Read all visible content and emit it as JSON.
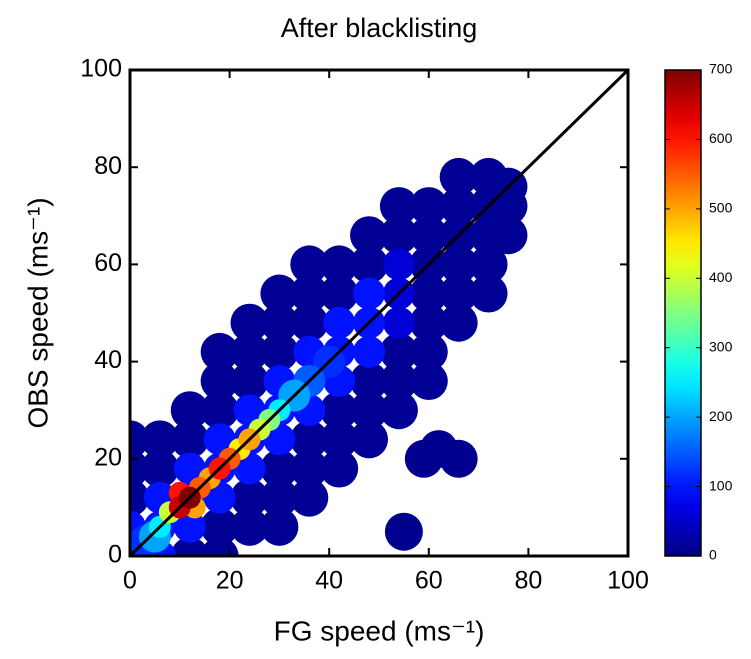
{
  "chart_data": {
    "type": "density_scatter",
    "title": "After blacklisting",
    "xlabel": "FG speed (ms⁻¹)",
    "ylabel": "OBS speed (ms⁻¹)",
    "xlim": [
      0,
      100
    ],
    "ylim": [
      0,
      100
    ],
    "xticks": [
      0,
      20,
      40,
      60,
      80,
      100
    ],
    "yticks": [
      0,
      20,
      40,
      60,
      80,
      100
    ],
    "colormap": "jet",
    "colorbar": {
      "lim": [
        0,
        700
      ],
      "ticks": [
        0,
        100,
        200,
        300,
        400,
        500,
        600,
        700
      ]
    },
    "reference_line": {
      "x": [
        0,
        100
      ],
      "y": [
        0,
        100
      ],
      "color": "#000000"
    },
    "x": [
      0,
      0,
      0,
      0,
      0,
      6,
      6,
      6,
      6,
      6,
      12,
      12,
      12,
      12,
      12,
      12,
      18,
      18,
      18,
      18,
      18,
      18,
      18,
      18,
      24,
      24,
      24,
      24,
      24,
      24,
      24,
      24,
      30,
      30,
      30,
      30,
      30,
      30,
      30,
      30,
      30,
      36,
      36,
      36,
      36,
      36,
      36,
      36,
      36,
      36,
      42,
      42,
      42,
      42,
      42,
      42,
      42,
      42,
      48,
      48,
      48,
      48,
      48,
      48,
      48,
      48,
      54,
      54,
      54,
      54,
      54,
      54,
      54,
      54,
      60,
      60,
      60,
      60,
      60,
      60,
      60,
      66,
      66,
      66,
      66,
      66,
      66,
      72,
      72,
      72,
      72,
      72,
      76,
      76,
      76,
      55,
      62,
      66,
      59,
      3,
      5,
      6,
      8,
      13,
      10,
      12,
      10,
      14,
      16,
      18,
      20,
      22,
      24,
      26,
      28,
      30,
      33,
      36,
      40
    ],
    "y": [
      0,
      6,
      12,
      18,
      24,
      0,
      6,
      12,
      18,
      24,
      0,
      6,
      12,
      18,
      24,
      30,
      0,
      6,
      12,
      18,
      24,
      30,
      36,
      42,
      6,
      12,
      18,
      24,
      30,
      36,
      42,
      48,
      6,
      12,
      18,
      24,
      30,
      36,
      42,
      48,
      54,
      12,
      18,
      24,
      30,
      36,
      42,
      48,
      54,
      60,
      18,
      24,
      30,
      36,
      42,
      48,
      54,
      60,
      24,
      30,
      36,
      42,
      48,
      54,
      60,
      66,
      30,
      36,
      42,
      48,
      54,
      60,
      66,
      72,
      36,
      42,
      48,
      54,
      60,
      66,
      72,
      48,
      54,
      60,
      66,
      72,
      78,
      54,
      60,
      66,
      72,
      78,
      66,
      72,
      76,
      5,
      22,
      20,
      20,
      3,
      4,
      6,
      9,
      10,
      10,
      12,
      13,
      14,
      16,
      18,
      20,
      22,
      24,
      26,
      28,
      30,
      33,
      36,
      40
    ],
    "density": [
      100,
      100,
      15,
      15,
      15,
      100,
      100,
      100,
      15,
      15,
      15,
      100,
      100,
      100,
      15,
      15,
      15,
      15,
      100,
      100,
      100,
      15,
      15,
      15,
      15,
      15,
      100,
      100,
      100,
      15,
      15,
      15,
      15,
      15,
      15,
      100,
      100,
      100,
      15,
      15,
      15,
      15,
      15,
      15,
      100,
      100,
      100,
      15,
      15,
      15,
      15,
      15,
      15,
      100,
      100,
      100,
      15,
      15,
      15,
      15,
      15,
      100,
      100,
      100,
      15,
      15,
      15,
      15,
      15,
      60,
      60,
      60,
      15,
      15,
      15,
      15,
      15,
      15,
      15,
      15,
      15,
      15,
      15,
      15,
      15,
      15,
      15,
      15,
      15,
      15,
      15,
      15,
      15,
      15,
      15,
      10,
      10,
      10,
      10,
      120,
      200,
      250,
      400,
      500,
      650,
      700,
      600,
      550,
      500,
      600,
      550,
      450,
      500,
      400,
      350,
      250,
      200,
      150,
      120
    ]
  }
}
